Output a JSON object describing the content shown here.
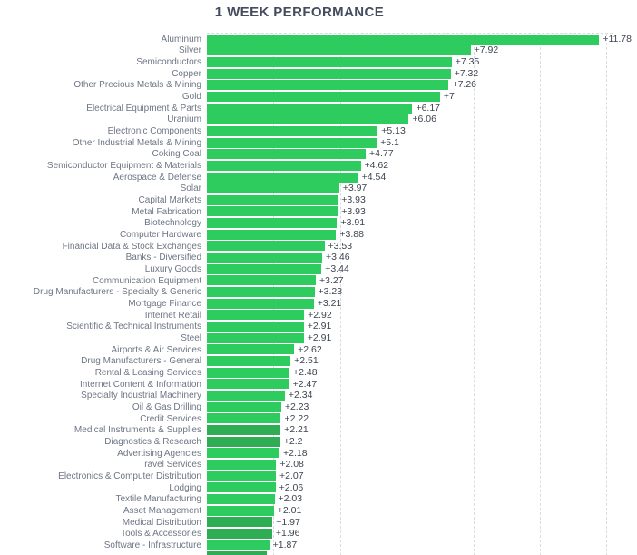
{
  "title": "1 WEEK PERFORMANCE",
  "colors": {
    "bar_green": "#2ecc5e",
    "bar_green_dark": "#2fad55",
    "gridline": "#d8dbe1",
    "title_text": "#454c5e",
    "category_text": "#6e7685",
    "value_text": "#3d4450"
  },
  "chart_data": {
    "type": "bar",
    "orientation": "horizontal",
    "title": "1 WEEK PERFORMANCE",
    "xlabel": "",
    "ylabel": "",
    "xlim": [
      0,
      12.2
    ],
    "gridlines_x": [
      2,
      4,
      6,
      8,
      10,
      12
    ],
    "grid": "dashed",
    "legend": "none",
    "categories": [
      "Aluminum",
      "Silver",
      "Semiconductors",
      "Copper",
      "Other Precious Metals & Mining",
      "Gold",
      "Electrical Equipment & Parts",
      "Uranium",
      "Electronic Components",
      "Other Industrial Metals & Mining",
      "Coking Coal",
      "Semiconductor Equipment & Materials",
      "Aerospace & Defense",
      "Solar",
      "Capital Markets",
      "Metal Fabrication",
      "Biotechnology",
      "Computer Hardware",
      "Financial Data & Stock Exchanges",
      "Banks - Diversified",
      "Luxury Goods",
      "Communication Equipment",
      "Drug Manufacturers - Specialty & Generic",
      "Mortgage Finance",
      "Internet Retail",
      "Scientific & Technical Instruments",
      "Steel",
      "Airports & Air Services",
      "Drug Manufacturers - General",
      "Rental & Leasing Services",
      "Internet Content & Information",
      "Specialty Industrial Machinery",
      "Oil & Gas Drilling",
      "Credit Services",
      "Medical Instruments & Supplies",
      "Diagnostics & Research",
      "Advertising Agencies",
      "Travel Services",
      "Electronics & Computer Distribution",
      "Lodging",
      "Textile Manufacturing",
      "Asset Management",
      "Medical Distribution",
      "Tools & Accessories",
      "Software - Infrastructure"
    ],
    "values": [
      11.78,
      7.92,
      7.35,
      7.32,
      7.26,
      7,
      6.17,
      6.06,
      5.13,
      5.1,
      4.77,
      4.62,
      4.54,
      3.97,
      3.93,
      3.93,
      3.91,
      3.88,
      3.53,
      3.46,
      3.44,
      3.27,
      3.23,
      3.21,
      2.92,
      2.91,
      2.91,
      2.62,
      2.51,
      2.48,
      2.47,
      2.34,
      2.23,
      2.22,
      2.21,
      2.2,
      2.18,
      2.08,
      2.07,
      2.06,
      2.03,
      2.01,
      1.97,
      1.96,
      1.87
    ],
    "value_labels": [
      "+11.78",
      "+7.92",
      "+7.35",
      "+7.32",
      "+7.26",
      "+7",
      "+6.17",
      "+6.06",
      "+5.13",
      "+5.1",
      "+4.77",
      "+4.62",
      "+4.54",
      "+3.97",
      "+3.93",
      "+3.93",
      "+3.91",
      "+3.88",
      "+3.53",
      "+3.46",
      "+3.44",
      "+3.27",
      "+3.23",
      "+3.21",
      "+2.92",
      "+2.91",
      "+2.91",
      "+2.62",
      "+2.51",
      "+2.48",
      "+2.47",
      "+2.34",
      "+2.23",
      "+2.22",
      "+2.21",
      "+2.2",
      "+2.18",
      "+2.08",
      "+2.07",
      "+2.06",
      "+2.03",
      "+2.01",
      "+1.97",
      "+1.96",
      "+1.87"
    ],
    "dark_bar_rows": [
      34,
      35,
      42,
      43
    ],
    "partial_bottom_bar": {
      "value": 1.8,
      "label": "",
      "cut_off": true
    }
  }
}
